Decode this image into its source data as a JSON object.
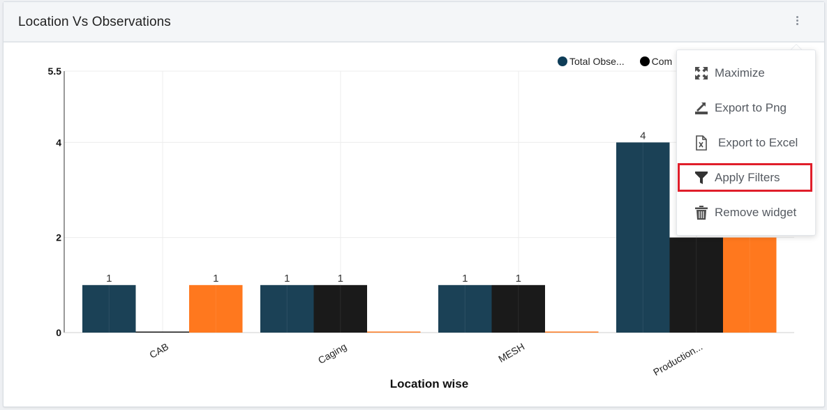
{
  "widget": {
    "title": "Location Vs Observations",
    "menu_icon": "more-vertical-icon"
  },
  "menu": {
    "items": [
      {
        "label": "Maximize",
        "icon": "maximize-icon"
      },
      {
        "label": "Export to Png",
        "icon": "export-png-icon"
      },
      {
        "label": "Export to Excel",
        "icon": "excel-file-icon"
      },
      {
        "label": "Apply Filters",
        "icon": "filter-icon",
        "highlighted": true
      },
      {
        "label": "Remove widget",
        "icon": "trash-icon"
      }
    ]
  },
  "chart_data": {
    "type": "bar",
    "title": "",
    "xlabel": "Location wise",
    "ylabel": "",
    "ylim": [
      0,
      5.5
    ],
    "yticks": [
      "0",
      "2",
      "4",
      "5.5"
    ],
    "categories": [
      "CAB",
      "Caging",
      "MESH",
      "Production..."
    ],
    "legend_position": "top-right",
    "grid": true,
    "series": [
      {
        "name": "Total Obse...",
        "color": "#1b4156",
        "values": [
          1,
          1,
          1,
          4
        ],
        "labels": [
          "1",
          "1",
          "1",
          "4"
        ]
      },
      {
        "name": "Com",
        "color": "#1a1a1a",
        "values": [
          0,
          1,
          1,
          2
        ],
        "labels": [
          "",
          "1",
          "1",
          ""
        ]
      },
      {
        "name": "",
        "color": "#ff781e",
        "values": [
          1,
          0,
          0,
          2
        ],
        "labels": [
          "1",
          "",
          "",
          ""
        ]
      }
    ]
  }
}
